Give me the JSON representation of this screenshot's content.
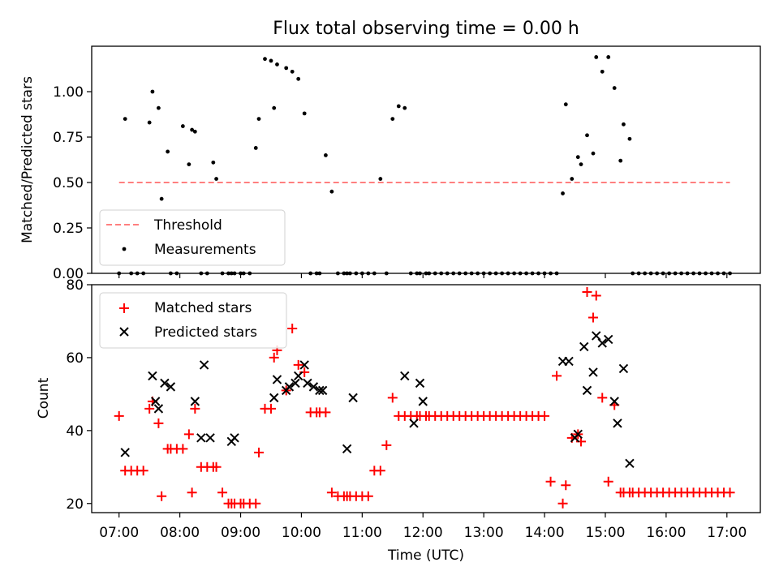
{
  "title": "Flux total observing time = 0.00 h",
  "xlabel": "Time (UTC)",
  "xticks": [
    "07:00",
    "08:00",
    "09:00",
    "10:00",
    "11:00",
    "12:00",
    "13:00",
    "14:00",
    "15:00",
    "16:00",
    "17:00"
  ],
  "top_panel": {
    "ylabel": "Matched/Predicted stars",
    "yticks": [
      "0.00",
      "0.25",
      "0.50",
      "0.75",
      "1.00"
    ],
    "legend": {
      "threshold": "Threshold",
      "measurements": "Measurements"
    }
  },
  "bottom_panel": {
    "ylabel": "Count",
    "yticks": [
      "20",
      "40",
      "60",
      "80"
    ],
    "legend": {
      "matched": "Matched stars",
      "predicted": "Predicted stars"
    }
  },
  "colors": {
    "threshold": "#ff7f7f",
    "measurements": "#000000",
    "matched": "#ff0000",
    "predicted": "#000000"
  },
  "chart_data": [
    {
      "type": "scatter",
      "title": "Flux total observing time = 0.00 h",
      "xlabel": "",
      "ylabel": "Matched/Predicted stars",
      "x_unit": "hours UTC",
      "xlim": [
        6.55,
        17.55
      ],
      "ylim": [
        0,
        1.25
      ],
      "threshold": 0.5,
      "threshold_x": [
        7.0,
        17.05
      ],
      "series": [
        {
          "name": "Measurements",
          "x": [
            7.0,
            7.1,
            7.2,
            7.3,
            7.4,
            7.5,
            7.55,
            7.65,
            7.7,
            7.8,
            7.85,
            7.95,
            8.05,
            8.15,
            8.2,
            8.25,
            8.35,
            8.45,
            8.55,
            8.6,
            8.7,
            8.8,
            8.85,
            8.9,
            9.0,
            9.05,
            9.15,
            9.25,
            9.3,
            9.4,
            9.5,
            9.55,
            9.6,
            9.75,
            9.85,
            9.95,
            10.05,
            10.15,
            10.25,
            10.3,
            10.4,
            10.5,
            10.6,
            10.7,
            10.75,
            10.8,
            10.9,
            11.0,
            11.1,
            11.2,
            11.3,
            11.4,
            11.5,
            11.6,
            11.7,
            11.8,
            11.9,
            11.95,
            12.05,
            12.1,
            12.2,
            12.3,
            12.4,
            12.5,
            12.6,
            12.7,
            12.8,
            12.9,
            13.0,
            13.1,
            13.2,
            13.3,
            13.4,
            13.5,
            13.6,
            13.7,
            13.8,
            13.9,
            14.0,
            14.1,
            14.2,
            14.3,
            14.35,
            14.45,
            14.55,
            14.6,
            14.7,
            14.8,
            14.85,
            14.95,
            15.05,
            15.15,
            15.25,
            15.3,
            15.4,
            15.45,
            15.55,
            15.65,
            15.75,
            15.85,
            15.95,
            16.05,
            16.15,
            16.25,
            16.35,
            16.45,
            16.55,
            16.65,
            16.75,
            16.85,
            16.95,
            17.05
          ],
          "y": [
            0,
            0.85,
            0,
            0,
            0,
            0.83,
            1.0,
            0.91,
            0.41,
            0.67,
            0,
            0,
            0.81,
            0.6,
            0.79,
            0.78,
            0,
            0,
            0.61,
            0.52,
            0,
            0,
            0,
            0,
            0,
            0,
            0,
            0.69,
            0.85,
            1.18,
            1.17,
            0.91,
            1.15,
            1.13,
            1.11,
            1.07,
            0.88,
            0,
            0,
            0,
            0.65,
            0.45,
            0,
            0,
            0,
            0,
            0,
            0,
            0,
            0,
            0.52,
            0,
            0.85,
            0.92,
            0.91,
            0,
            0,
            0,
            0,
            0,
            0,
            0,
            0,
            0,
            0,
            0,
            0,
            0,
            0,
            0,
            0,
            0,
            0,
            0,
            0,
            0,
            0,
            0,
            0,
            0,
            0,
            0.44,
            0.93,
            0.52,
            0.64,
            0.6,
            0.76,
            0.66,
            1.19,
            1.11,
            1.19,
            1.02,
            0.62,
            0.82,
            0.74,
            0,
            0,
            0,
            0,
            0,
            0,
            0,
            0,
            0,
            0,
            0,
            0,
            0,
            0,
            0,
            0,
            0
          ]
        }
      ]
    },
    {
      "type": "scatter",
      "title": "",
      "xlabel": "Time (UTC)",
      "ylabel": "Count",
      "x_unit": "hours UTC",
      "xlim": [
        6.55,
        17.55
      ],
      "ylim": [
        17.5,
        80
      ],
      "series": [
        {
          "name": "Matched stars",
          "x": [
            7.0,
            7.1,
            7.2,
            7.3,
            7.4,
            7.5,
            7.55,
            7.65,
            7.7,
            7.8,
            7.85,
            7.95,
            8.05,
            8.15,
            8.2,
            8.25,
            8.35,
            8.45,
            8.55,
            8.6,
            8.7,
            8.8,
            8.85,
            8.9,
            9.0,
            9.05,
            9.15,
            9.25,
            9.3,
            9.4,
            9.5,
            9.55,
            9.6,
            9.75,
            9.85,
            9.95,
            10.05,
            10.15,
            10.25,
            10.3,
            10.4,
            10.5,
            10.6,
            10.7,
            10.75,
            10.8,
            10.9,
            11.0,
            11.1,
            11.2,
            11.3,
            11.4,
            11.5,
            11.6,
            11.7,
            11.8,
            11.9,
            11.95,
            12.05,
            12.1,
            12.2,
            12.3,
            12.4,
            12.5,
            12.6,
            12.7,
            12.8,
            12.9,
            13.0,
            13.1,
            13.2,
            13.3,
            13.4,
            13.5,
            13.6,
            13.7,
            13.8,
            13.9,
            14.0,
            14.1,
            14.2,
            14.3,
            14.35,
            14.45,
            14.55,
            14.6,
            14.7,
            14.8,
            14.85,
            14.95,
            15.05,
            15.15,
            15.25,
            15.3,
            15.4,
            15.45,
            15.55,
            15.65,
            15.75,
            15.85,
            15.95,
            16.05,
            16.15,
            16.25,
            16.35,
            16.45,
            16.55,
            16.65,
            16.75,
            16.85,
            16.95,
            17.05
          ],
          "y": [
            44,
            29,
            29,
            29,
            29,
            46,
            48,
            42,
            22,
            35,
            35,
            35,
            35,
            39,
            23,
            46,
            30,
            30,
            30,
            30,
            23,
            20,
            20,
            20,
            20,
            20,
            20,
            20,
            34,
            46,
            46,
            60,
            62,
            51,
            68,
            58,
            56,
            45,
            45,
            45,
            45,
            23,
            22,
            22,
            22,
            22,
            22,
            22,
            22,
            29,
            29,
            36,
            49,
            44,
            44,
            44,
            44,
            44,
            44,
            44,
            44,
            44,
            44,
            44,
            44,
            44,
            44,
            44,
            44,
            44,
            44,
            44,
            44,
            44,
            44,
            44,
            44,
            44,
            44,
            26,
            55,
            20,
            25,
            38,
            39,
            37,
            78,
            71,
            77,
            49,
            26,
            47,
            23,
            23,
            23,
            23,
            23,
            23,
            23,
            23,
            23,
            23,
            23,
            23,
            23,
            23,
            23,
            23,
            23,
            23,
            23,
            23
          ]
        },
        {
          "name": "Predicted stars",
          "x": [
            7.1,
            7.55,
            7.6,
            7.65,
            7.75,
            7.85,
            8.25,
            8.35,
            8.4,
            8.5,
            8.85,
            8.9,
            9.55,
            9.6,
            9.75,
            9.8,
            9.9,
            9.95,
            10.05,
            10.1,
            10.2,
            10.3,
            10.35,
            10.75,
            10.85,
            11.7,
            11.85,
            11.95,
            12.0,
            14.3,
            14.4,
            14.5,
            14.55,
            14.65,
            14.7,
            14.8,
            14.85,
            14.95,
            15.05,
            15.15,
            15.2,
            15.3,
            15.4
          ],
          "y": [
            34,
            55,
            48,
            46,
            53,
            52,
            48,
            38,
            58,
            38,
            37,
            38,
            49,
            54,
            51,
            52,
            53,
            55,
            58,
            53,
            52,
            51,
            51,
            35,
            49,
            55,
            42,
            53,
            48,
            59,
            59,
            38,
            39,
            63,
            51,
            56,
            66,
            64,
            65,
            48,
            42,
            57,
            31
          ]
        }
      ]
    }
  ]
}
